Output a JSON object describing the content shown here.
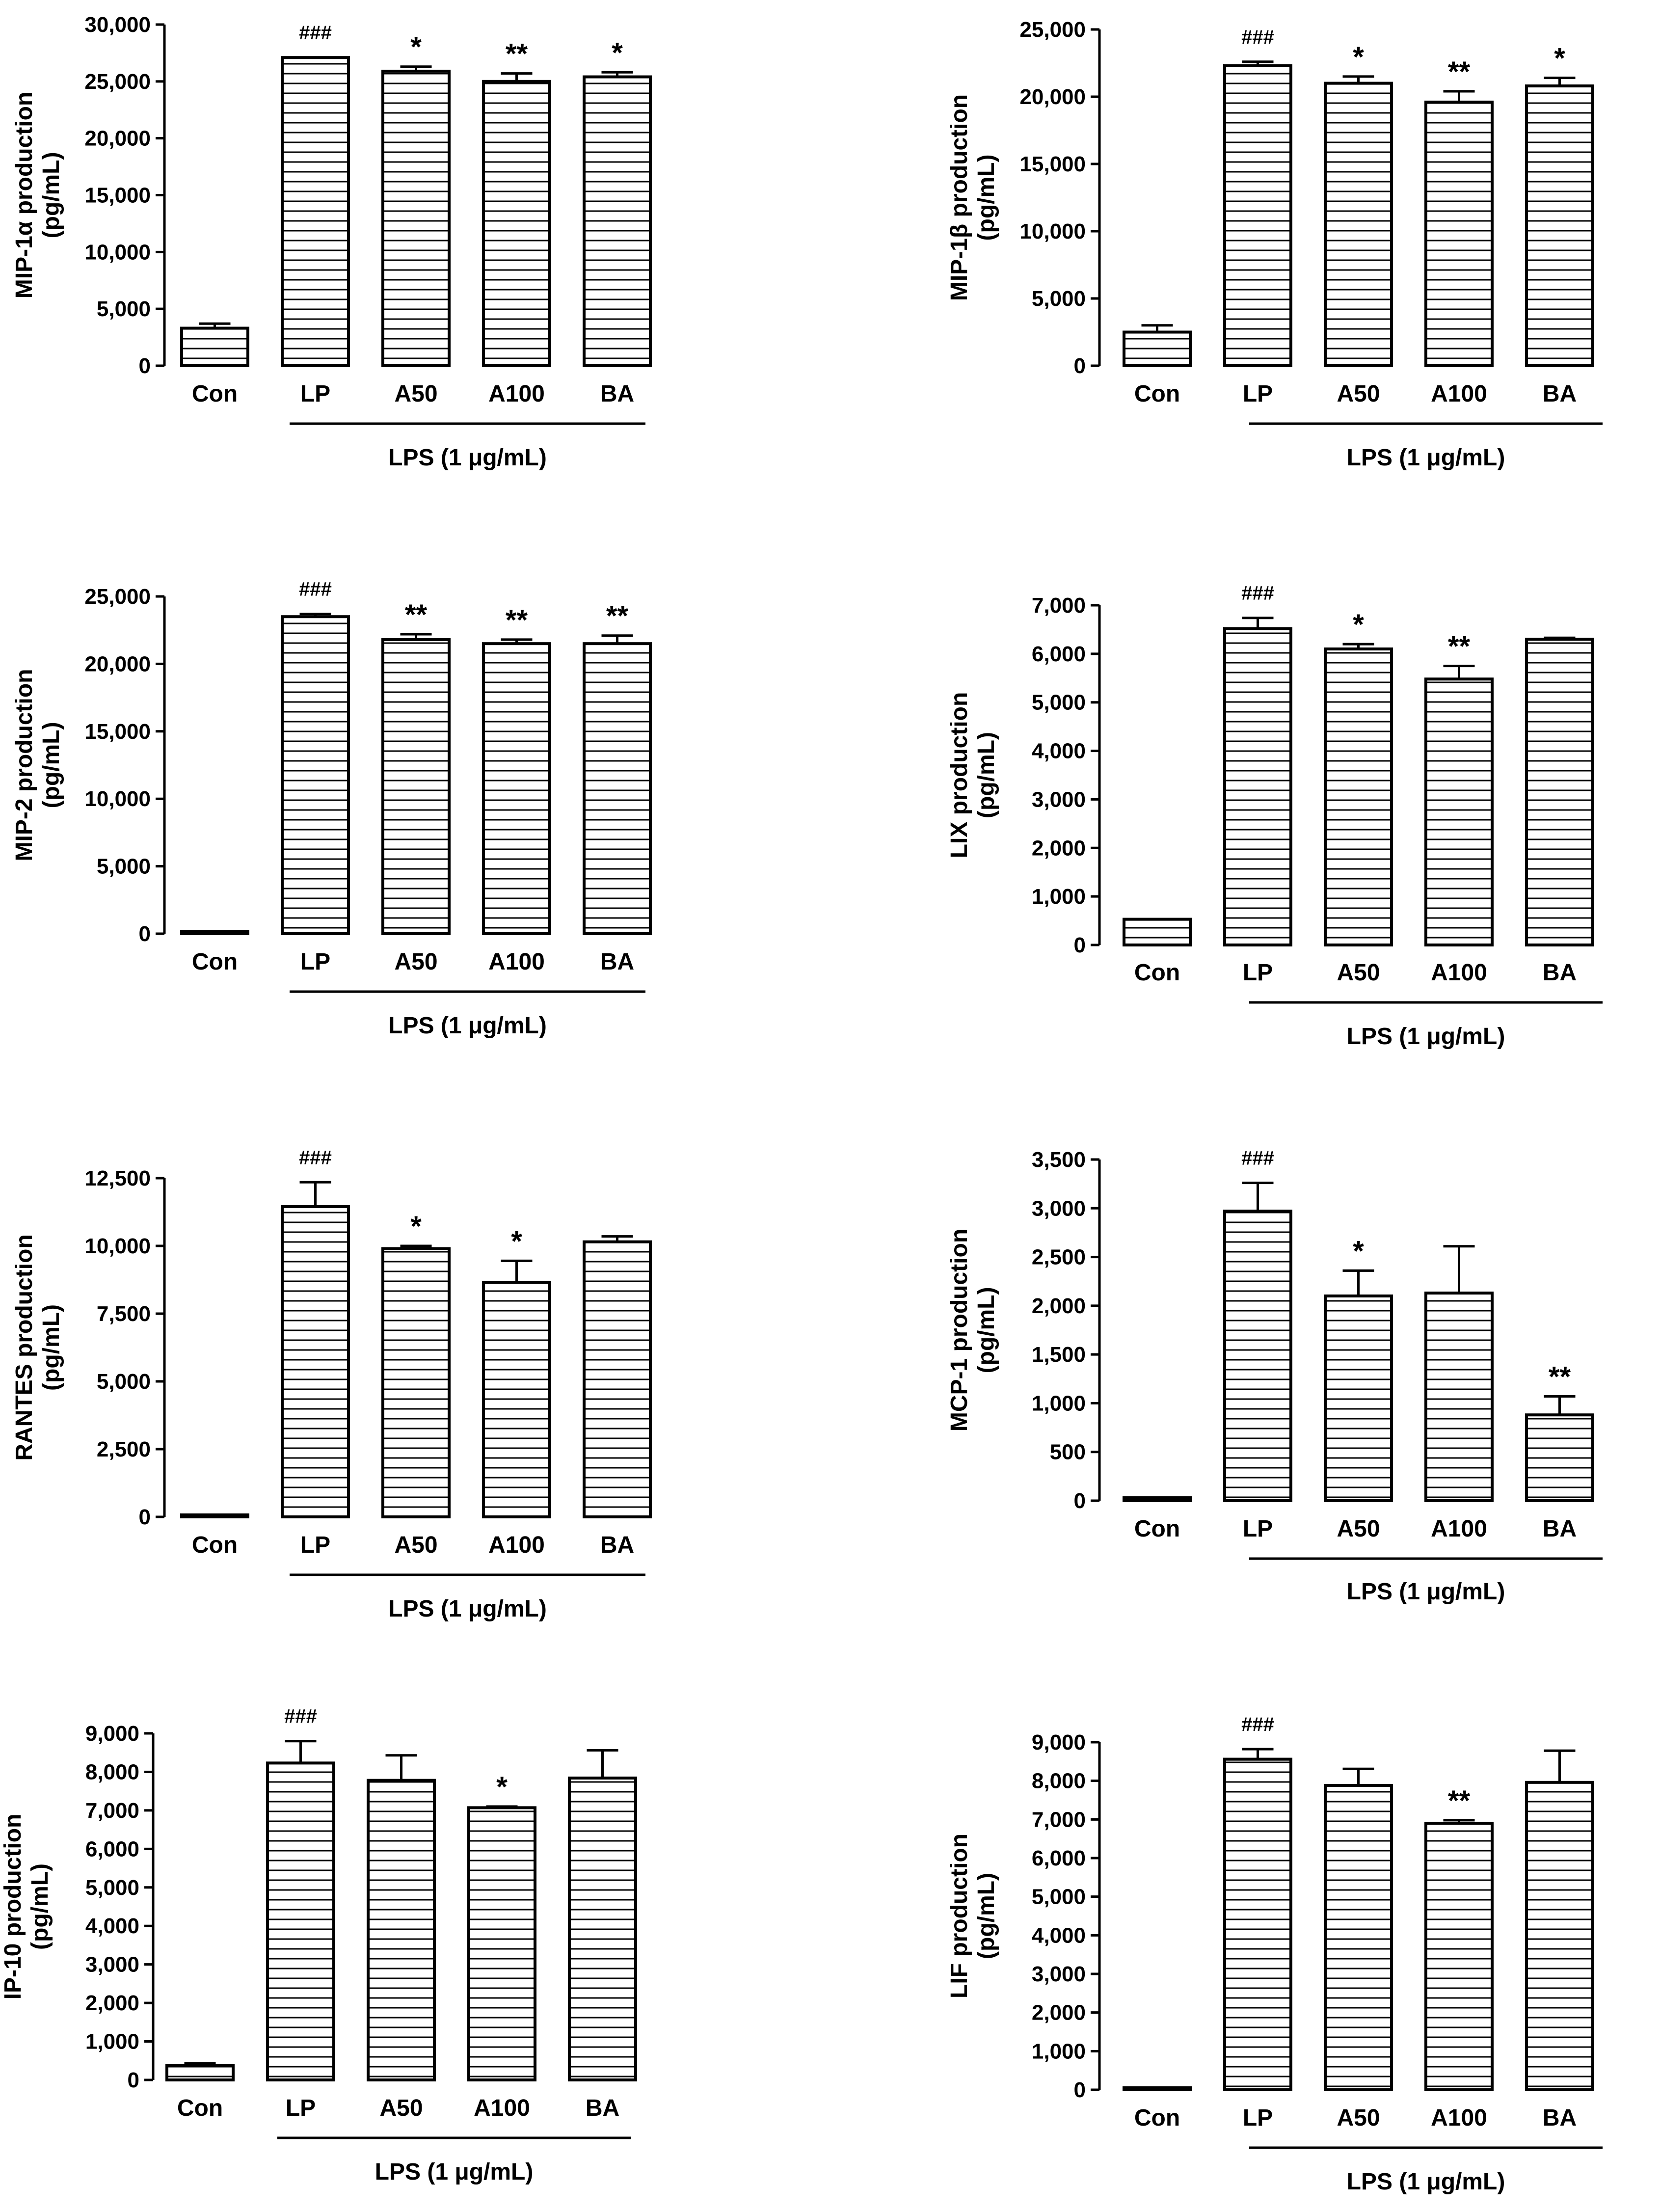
{
  "figure": {
    "group_label": "LPS (1 μg/mL)",
    "hatch_color": "#000000",
    "bar_fill": "#ffffff",
    "line_color": "#000000"
  },
  "chart_data": [
    {
      "type": "bar",
      "ylabel_line1": "MIP-1α production",
      "ylabel_line2": "(pg/mL)",
      "categories": [
        "Con",
        "LP",
        "A50",
        "A100",
        "BA"
      ],
      "values": [
        3300,
        27100,
        25900,
        25000,
        25400
      ],
      "errors": [
        400,
        0,
        400,
        700,
        400
      ],
      "annotations": [
        "",
        "###",
        "*",
        "**",
        "*"
      ],
      "ylim": [
        0,
        30000
      ],
      "yticks": [
        0,
        5000,
        10000,
        15000,
        20000,
        25000,
        30000
      ],
      "ytick_labels": [
        "0",
        "5,000",
        "10,000",
        "15,000",
        "20,000",
        "25,000",
        "30,000"
      ],
      "group_label": "LPS (1 μg/mL)"
    },
    {
      "type": "bar",
      "ylabel_line1": "MIP-1β production",
      "ylabel_line2": "(pg/mL)",
      "categories": [
        "Con",
        "LP",
        "A50",
        "A100",
        "BA"
      ],
      "values": [
        2500,
        22300,
        21000,
        19600,
        20800
      ],
      "errors": [
        500,
        300,
        500,
        800,
        600
      ],
      "annotations": [
        "",
        "###",
        "*",
        "**",
        "*"
      ],
      "ylim": [
        0,
        25000
      ],
      "yticks": [
        0,
        5000,
        10000,
        15000,
        20000,
        25000
      ],
      "ytick_labels": [
        "0",
        "5,000",
        "10,000",
        "15,000",
        "20,000",
        "25,000"
      ],
      "group_label": "LPS (1 μg/mL)"
    },
    {
      "type": "bar",
      "ylabel_line1": "MIP-2 production",
      "ylabel_line2": "(pg/mL)",
      "categories": [
        "Con",
        "LP",
        "A50",
        "A100",
        "BA"
      ],
      "values": [
        0,
        23500,
        21800,
        21500,
        21500
      ],
      "errors": [
        0,
        200,
        400,
        300,
        600
      ],
      "annotations": [
        "",
        "###",
        "**",
        "**",
        "**"
      ],
      "ylim": [
        0,
        25000
      ],
      "yticks": [
        0,
        5000,
        10000,
        15000,
        20000,
        25000
      ],
      "ytick_labels": [
        "0",
        "5,000",
        "10,000",
        "15,000",
        "20,000",
        "25,000"
      ],
      "group_label": "LPS (1 μg/mL)"
    },
    {
      "type": "bar",
      "ylabel_line1": "LIX production",
      "ylabel_line2": "(pg/mL)",
      "categories": [
        "Con",
        "LP",
        "A50",
        "A100",
        "BA"
      ],
      "values": [
        530,
        6520,
        6100,
        5480,
        6300
      ],
      "errors": [
        0,
        220,
        100,
        270,
        30
      ],
      "annotations": [
        "",
        "###",
        "*",
        "**",
        ""
      ],
      "ylim": [
        0,
        7000
      ],
      "yticks": [
        0,
        1000,
        2000,
        3000,
        4000,
        5000,
        6000,
        7000
      ],
      "ytick_labels": [
        "0",
        "1,000",
        "2,000",
        "3,000",
        "4,000",
        "5,000",
        "6,000",
        "7,000"
      ],
      "group_label": "LPS (1 μg/mL)"
    },
    {
      "type": "bar",
      "ylabel_line1": "RANTES production",
      "ylabel_line2": "(pg/mL)",
      "categories": [
        "Con",
        "LP",
        "A50",
        "A100",
        "BA"
      ],
      "values": [
        40,
        11450,
        9900,
        8650,
        10150
      ],
      "errors": [
        0,
        900,
        100,
        800,
        200
      ],
      "annotations": [
        "",
        "###",
        "*",
        "*",
        ""
      ],
      "ylim": [
        0,
        12500
      ],
      "yticks": [
        0,
        2500,
        5000,
        7500,
        10000,
        12500
      ],
      "ytick_labels": [
        "0",
        "2,500",
        "5,000",
        "7,500",
        "10,000",
        "12,500"
      ],
      "group_label": "LPS (1 μg/mL)"
    },
    {
      "type": "bar",
      "ylabel_line1": "MCP-1 production",
      "ylabel_line2": "(pg/mL)",
      "categories": [
        "Con",
        "LP",
        "A50",
        "A100",
        "BA"
      ],
      "values": [
        30,
        2970,
        2100,
        2130,
        880
      ],
      "errors": [
        0,
        290,
        260,
        480,
        190
      ],
      "annotations": [
        "",
        "###",
        "*",
        "",
        "**"
      ],
      "ylim": [
        0,
        3500
      ],
      "yticks": [
        0,
        500,
        1000,
        1500,
        2000,
        2500,
        3000,
        3500
      ],
      "ytick_labels": [
        "0",
        "500",
        "1,000",
        "1,500",
        "2,000",
        "2,500",
        "3,000",
        "3,500"
      ],
      "group_label": "LPS (1 μg/mL)"
    },
    {
      "type": "bar",
      "ylabel_line1": "IP-10 production",
      "ylabel_line2": "(pg/mL)",
      "categories": [
        "Con",
        "LP",
        "A50",
        "A100",
        "BA"
      ],
      "values": [
        380,
        8230,
        7780,
        7070,
        7840
      ],
      "errors": [
        50,
        570,
        650,
        30,
        720
      ],
      "annotations": [
        "",
        "###",
        "",
        "*",
        ""
      ],
      "ylim": [
        0,
        9000
      ],
      "yticks": [
        0,
        1000,
        2000,
        3000,
        4000,
        5000,
        6000,
        7000,
        8000,
        9000
      ],
      "ytick_labels": [
        "0",
        "1,000",
        "2,000",
        "3,000",
        "4,000",
        "5,000",
        "6,000",
        "7,000",
        "8,000",
        "9,000"
      ],
      "group_label": "LPS (1 μg/mL)"
    },
    {
      "type": "bar",
      "ylabel_line1": "LIF production",
      "ylabel_line2": "(pg/mL)",
      "categories": [
        "Con",
        "LP",
        "A50",
        "A100",
        "BA"
      ],
      "values": [
        40,
        8560,
        7880,
        6900,
        7960
      ],
      "errors": [
        0,
        260,
        430,
        80,
        820
      ],
      "annotations": [
        "",
        "###",
        "",
        "**",
        ""
      ],
      "ylim": [
        0,
        9000
      ],
      "yticks": [
        0,
        1000,
        2000,
        3000,
        4000,
        5000,
        6000,
        7000,
        8000,
        9000
      ],
      "ytick_labels": [
        "0",
        "1,000",
        "2,000",
        "3,000",
        "4,000",
        "5,000",
        "6,000",
        "7,000",
        "8,000",
        "9,000"
      ],
      "group_label": "LPS (1 μg/mL)"
    }
  ]
}
